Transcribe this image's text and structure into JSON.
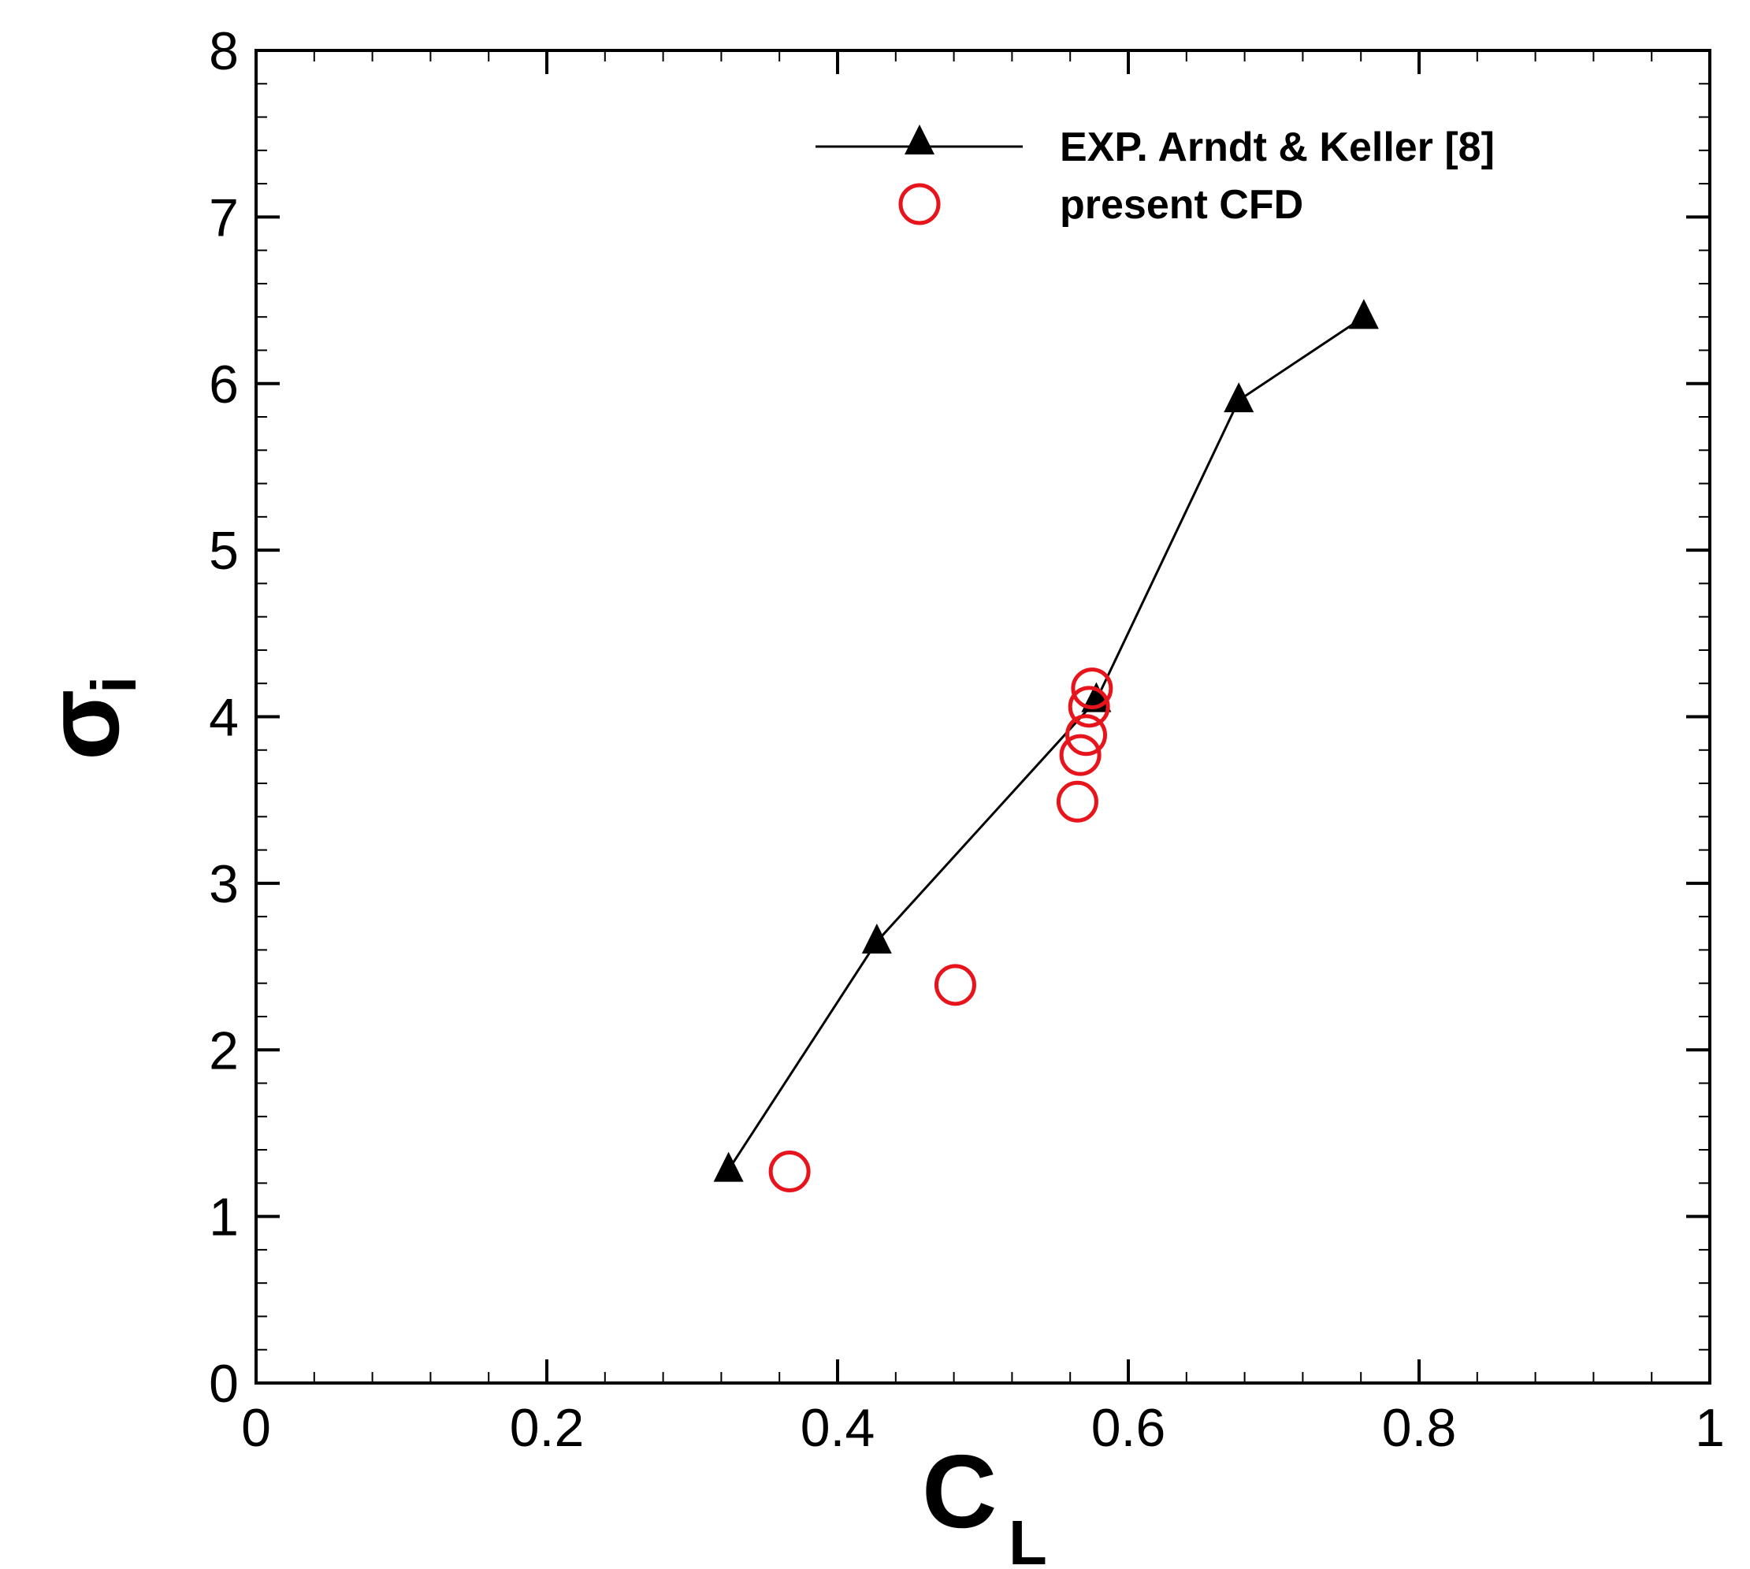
{
  "chart_data": {
    "type": "scatter",
    "xlabel": "C",
    "xlabel_sub": "L",
    "ylabel": "σ",
    "ylabel_sub": "i",
    "xlim": [
      0,
      1
    ],
    "ylim": [
      0,
      8
    ],
    "x_ticks": [
      0,
      0.2,
      0.4,
      0.6,
      0.8,
      1
    ],
    "x_tick_labels": [
      "0",
      "0.2",
      "0.4",
      "0.6",
      "0.8",
      "1"
    ],
    "y_ticks": [
      0,
      1,
      2,
      3,
      4,
      5,
      6,
      7,
      8
    ],
    "y_tick_labels": [
      "0",
      "1",
      "2",
      "3",
      "4",
      "5",
      "6",
      "7",
      "8"
    ],
    "x_minor_step": 0.04,
    "y_minor_step": 0.2,
    "grid": false,
    "legend_position": "top-right",
    "series": [
      {
        "name": "EXP. Arndt & Keller [8]",
        "style": "line-triangle",
        "color": "#000000",
        "points": [
          [
            0.325,
            1.28
          ],
          [
            0.427,
            2.65
          ],
          [
            0.578,
            4.1
          ],
          [
            0.676,
            5.9
          ],
          [
            0.762,
            6.4
          ]
        ]
      },
      {
        "name": "present CFD",
        "style": "open-circle",
        "color": "#e8141c",
        "points": [
          [
            0.367,
            1.27
          ],
          [
            0.481,
            2.39
          ],
          [
            0.575,
            4.17
          ],
          [
            0.573,
            4.06
          ],
          [
            0.571,
            3.89
          ],
          [
            0.567,
            3.77
          ],
          [
            0.565,
            3.49
          ]
        ]
      }
    ]
  }
}
